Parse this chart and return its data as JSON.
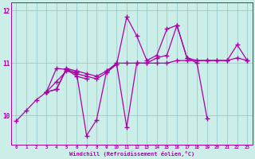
{
  "background_color": "#cceee8",
  "line_color": "#aa00aa",
  "marker_style": "+",
  "marker_size": 4,
  "linewidth": 0.9,
  "xlabel": "Windchill (Refroidissement éolien,°C)",
  "xlim": [
    -0.5,
    23.5
  ],
  "ylim": [
    9.45,
    12.15
  ],
  "yticks": [
    10,
    11,
    12
  ],
  "xtick_labels": [
    "0",
    "1",
    "2",
    "3",
    "4",
    "5",
    "6",
    "7",
    "8",
    "9",
    "10",
    "11",
    "12",
    "13",
    "14",
    "15",
    "16",
    "17",
    "18",
    "19",
    "20",
    "21",
    "22",
    "23"
  ],
  "grid_color": "#99cccc",
  "grid_linewidth": 0.6,
  "series": [
    {
      "x": [
        0,
        1,
        2,
        3,
        4,
        5,
        6,
        7,
        8,
        9,
        10,
        11,
        12,
        13,
        14,
        15,
        16,
        17,
        18,
        19,
        20,
        21,
        22,
        23
      ],
      "y": [
        9.9,
        10.1,
        10.3,
        10.45,
        10.5,
        10.9,
        10.85,
        10.8,
        10.75,
        10.85,
        11.0,
        11.0,
        11.0,
        11.0,
        11.0,
        11.0,
        11.05,
        11.05,
        11.05,
        11.05,
        11.05,
        11.05,
        11.1,
        11.05
      ]
    },
    {
      "x": [
        3,
        4,
        5,
        6,
        7,
        8,
        9,
        10,
        11,
        12,
        13,
        14,
        15,
        16,
        17,
        18,
        19
      ],
      "y": [
        10.45,
        10.5,
        10.88,
        10.82,
        9.62,
        9.92,
        10.85,
        10.98,
        9.78,
        11.0,
        11.0,
        11.1,
        11.15,
        11.72,
        11.1,
        11.0,
        9.95
      ]
    },
    {
      "x": [
        3,
        4,
        5,
        6,
        7,
        8,
        9,
        10,
        11,
        12,
        13,
        14,
        15,
        16,
        17,
        18,
        19,
        20,
        21,
        22,
        23
      ],
      "y": [
        10.45,
        10.65,
        10.85,
        10.8,
        10.75,
        10.7,
        10.82,
        10.98,
        11.88,
        11.52,
        11.05,
        11.15,
        11.65,
        11.72,
        11.1,
        11.05,
        11.05,
        11.05,
        11.05,
        11.35,
        11.05
      ]
    },
    {
      "x": [
        3,
        4,
        5,
        6,
        7
      ],
      "y": [
        10.45,
        10.9,
        10.88,
        10.75,
        10.7
      ]
    }
  ]
}
